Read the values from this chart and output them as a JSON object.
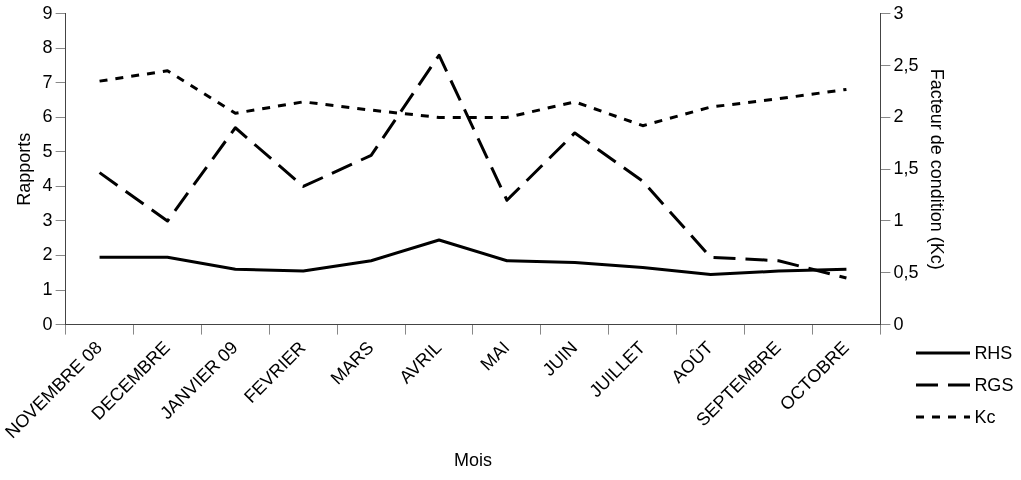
{
  "chart_data": {
    "type": "line",
    "xlabel": "Mois",
    "ylabel": "Rapports",
    "y2label": "Facteur de condition (Kc)",
    "categories": [
      "NOVEMBRE 08",
      "DECEMBRE",
      "JANVIER 09",
      "FEVRIER",
      "MARS",
      "AVRIL",
      "MAI",
      "JUIN",
      "JUILLET",
      "AOÛT",
      "SEPTEMBRE",
      "OCTOBRE"
    ],
    "series": [
      {
        "name": "RHS",
        "color": "#000000",
        "line_style": "solid",
        "values": [
          1.95,
          1.95,
          1.6,
          1.55,
          1.85,
          2.45,
          1.85,
          1.8,
          1.65,
          1.45,
          1.55,
          1.6
        ]
      },
      {
        "name": "RGS",
        "color": "#000000",
        "line_style": "dashed",
        "values": [
          4.4,
          3.0,
          5.7,
          4.0,
          4.9,
          7.8,
          3.6,
          5.55,
          4.15,
          1.95,
          1.85,
          1.35
        ]
      },
      {
        "name": "Kc",
        "color": "#000000",
        "line_style": "dotted",
        "axis": "y2",
        "values": [
          2.35,
          2.45,
          2.04,
          2.15,
          2.07,
          2.0,
          2.0,
          2.15,
          1.92,
          2.1,
          2.18,
          2.27
        ]
      }
    ],
    "ylim": [
      0,
      9
    ],
    "yticks": [
      0,
      1,
      2,
      3,
      4,
      5,
      6,
      7,
      8,
      9
    ],
    "y2lim": [
      0,
      3
    ],
    "y2ticks": [
      0,
      {
        "value": 0.5,
        "label": "0,5"
      },
      1,
      {
        "value": 1.5,
        "label": "1,5"
      },
      2,
      {
        "value": 2.5,
        "label": "2,5"
      },
      3
    ],
    "grid": false,
    "legend": "bottom right",
    "marker": "none"
  }
}
